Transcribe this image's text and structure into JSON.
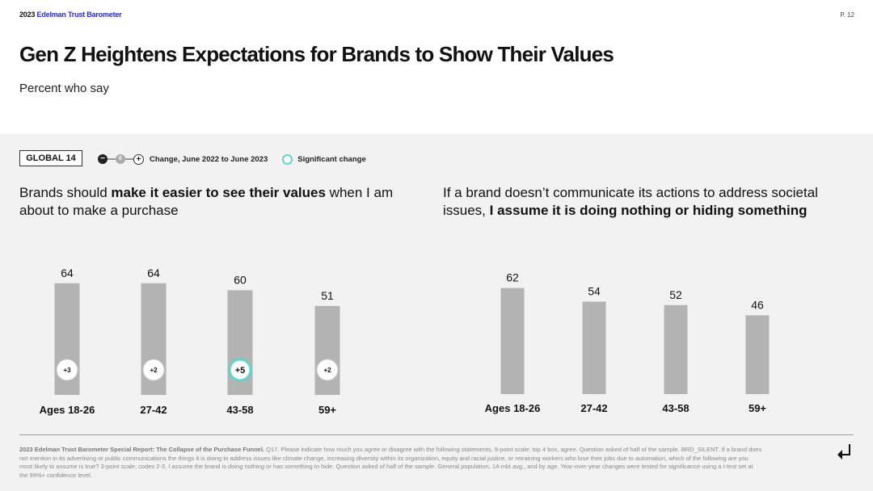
{
  "header": {
    "brand_year": "2023",
    "brand_name": "Edelman Trust Barometer",
    "page": "P. 12",
    "title": "Gen Z Heightens Expectations for Brands to Show Their Values",
    "subtitle": "Percent who say"
  },
  "legend": {
    "badge": "GLOBAL 14",
    "minus": "−",
    "zero": "0",
    "plus": "+",
    "change_label": "Change, June 2022 to June 2023",
    "significant_label": "Significant change"
  },
  "left_heading": {
    "part1": "Brands should ",
    "bold": "make it easier to see their values",
    "part2": " when I am about to make a purchase"
  },
  "right_heading": {
    "part1": "If a brand doesn’t communicate its actions to address societal issues, ",
    "bold": "I assume it is doing nothing or hiding something",
    "part2": ""
  },
  "chart_data": [
    {
      "type": "bar",
      "title": "Brands should make it easier to see their values when I am about to make a purchase",
      "categories": [
        "Ages 18-26",
        "27-42",
        "43-58",
        "59+"
      ],
      "values": [
        64,
        64,
        60,
        51
      ],
      "changes": [
        "+3",
        "+2",
        "+5",
        "+2"
      ],
      "significant": [
        false,
        false,
        true,
        false
      ],
      "ylim": [
        0,
        100
      ],
      "color": "#b3b3b3"
    },
    {
      "type": "bar",
      "title": "If a brand doesn’t communicate its actions to address societal issues, I assume it is doing nothing or hiding something",
      "categories": [
        "Ages 18-26",
        "27-42",
        "43-58",
        "59+"
      ],
      "values": [
        62,
        54,
        52,
        46
      ],
      "ylim": [
        0,
        100
      ],
      "color": "#b3b3b3"
    }
  ],
  "footnote": {
    "source": "2023 Edelman Trust Barometer Special Report: The Collapse of the Purchase Funnel.",
    "text": " Q17. Please indicate how much you agree or disagree with the following statements. 9-point scale; top 4 box, agree. Question asked of half of the sample. BRD_SILENT. If a brand does not mention in its advertising or public communications the things it is doing to address issues like climate change, increasing diversity within its organization, equity and racial justice, or retraining workers who lose their jobs due to automation, which of the following are you most likely to assume is true? 3-point scale; codes 2-3, I assume the brand is doing nothing or has something to hide. Question asked of half of the sample. General population, 14-mkt avg., and by age. Year-over-year changes were tested for significance using a t-test set at the 99%+ confidence level."
  },
  "colors": {
    "bar": "#b3b3b3",
    "significant": "#5ed6cc",
    "brand_accent": "#2b2bd4"
  }
}
